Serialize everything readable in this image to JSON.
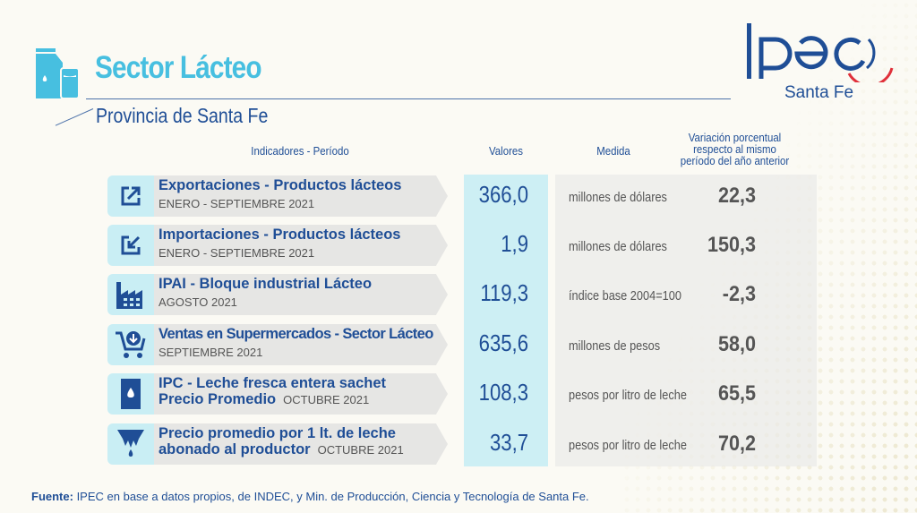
{
  "header": {
    "title": "Sector Lácteo",
    "subtitle": "Provincia de Santa Fe"
  },
  "logo": {
    "text": "IPEC",
    "region": "Santa Fe"
  },
  "columns": {
    "indicator": "Indicadores - Período",
    "value": "Valores",
    "measure": "Medida",
    "variation": "Variación porcentual respecto al mismo período del año anterior"
  },
  "rows": [
    {
      "icon": "export-icon",
      "title": "Exportaciones - Productos lácteos",
      "period": "ENERO - SEPTIEMBRE 2021",
      "value": "366,0",
      "measure": "millones de dólares",
      "variation": "22,3"
    },
    {
      "icon": "import-icon",
      "title": "Importaciones - Productos lácteos",
      "period": "ENERO - SEPTIEMBRE 2021",
      "value": "1,9",
      "measure": "millones de dólares",
      "variation": "150,3"
    },
    {
      "icon": "factory-icon",
      "title": "IPAI - Bloque industrial Lácteo",
      "period": "AGOSTO 2021",
      "value": "119,3",
      "measure": "índice base 2004=100",
      "variation": "-2,3"
    },
    {
      "icon": "shopping-cart-icon",
      "title": "Ventas en Supermercados - Sector Lácteo",
      "period": "SEPTIEMBRE  2021",
      "value": "635,6",
      "measure": "millones de pesos",
      "variation": "58,0"
    },
    {
      "icon": "milk-sachet-icon",
      "title": "IPC - Leche fresca entera sachet",
      "title2": "Precio Promedio",
      "period": "OCTUBRE 2021",
      "value": "108,3",
      "measure": "pesos por litro de leche",
      "variation": "65,5"
    },
    {
      "icon": "udder-icon",
      "title": "Precio promedio por 1 lt. de leche",
      "title2": "abonado al productor",
      "period": "OCTUBRE 2021",
      "value": "33,7",
      "measure": "pesos por litro de leche",
      "variation": "70,2"
    }
  ],
  "footer": {
    "label": "Fuente:",
    "text": " IPEC en base a datos  propios, de  INDEC, y Min. de Producción, Ciencia y Tecnología de Santa Fe."
  },
  "colors": {
    "title": "#47bfe0",
    "navy": "#1f4e96",
    "cyan_bg": "#cdeff4",
    "logo_red": "#e0303a"
  }
}
